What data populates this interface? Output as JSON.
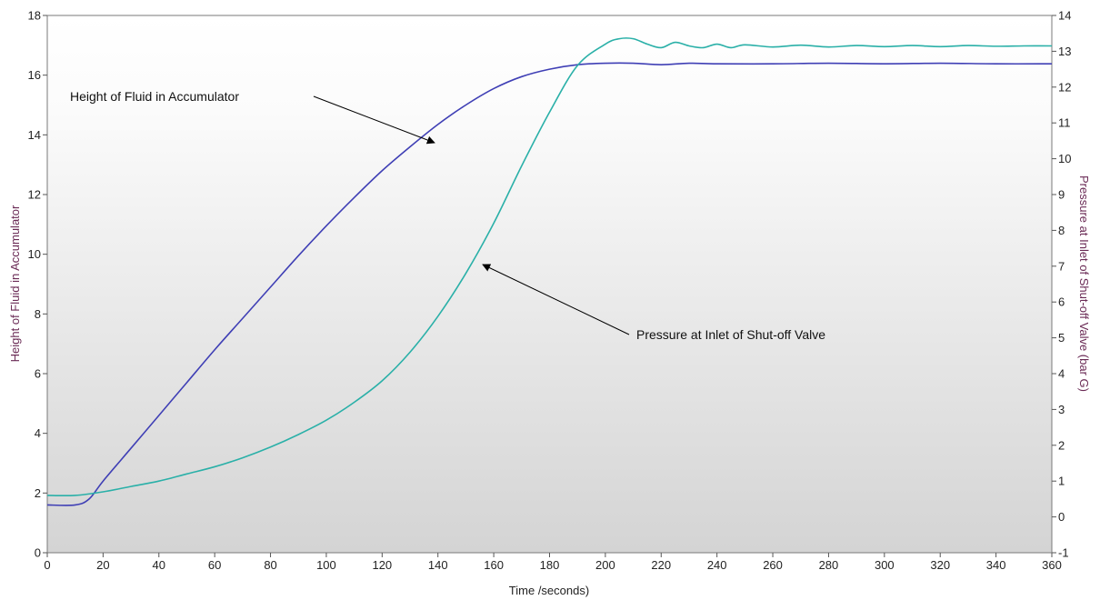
{
  "chart_data": {
    "type": "line",
    "xlabel": "Time /seconds)",
    "ylabel_left": "Height of Fluid in Accumulator",
    "ylabel_right": "Pressure at Inlet of Shut-off Valve (bar G)",
    "xlim": [
      0,
      360
    ],
    "ylim_left": [
      0,
      18
    ],
    "ylim_right": [
      -1,
      14
    ],
    "x_ticks": [
      "0",
      "20",
      "40",
      "60",
      "80",
      "100",
      "120",
      "140",
      "160",
      "180",
      "200",
      "220",
      "240",
      "260",
      "280",
      "300",
      "320",
      "340",
      "360"
    ],
    "y_left_ticks": [
      "0",
      "2",
      "4",
      "6",
      "8",
      "10",
      "12",
      "14",
      "16",
      "18"
    ],
    "y_right_ticks": [
      "-1",
      "0",
      "1",
      "2",
      "3",
      "4",
      "5",
      "6",
      "7",
      "8",
      "9",
      "10",
      "11",
      "12",
      "13",
      "14"
    ],
    "grid": false,
    "series": [
      {
        "name": "Height of Fluid in Accumulator",
        "axis": "left",
        "color": "#3f3fb5",
        "points": [
          [
            0,
            1.6
          ],
          [
            10,
            1.6
          ],
          [
            15,
            1.8
          ],
          [
            20,
            2.4
          ],
          [
            30,
            3.5
          ],
          [
            40,
            4.6
          ],
          [
            50,
            5.7
          ],
          [
            60,
            6.8
          ],
          [
            70,
            7.85
          ],
          [
            80,
            8.9
          ],
          [
            90,
            9.95
          ],
          [
            100,
            10.95
          ],
          [
            110,
            11.9
          ],
          [
            120,
            12.8
          ],
          [
            130,
            13.6
          ],
          [
            140,
            14.35
          ],
          [
            150,
            15.0
          ],
          [
            160,
            15.55
          ],
          [
            170,
            15.95
          ],
          [
            180,
            16.2
          ],
          [
            190,
            16.35
          ],
          [
            200,
            16.4
          ],
          [
            210,
            16.4
          ],
          [
            220,
            16.35
          ],
          [
            230,
            16.4
          ],
          [
            240,
            16.38
          ],
          [
            260,
            16.38
          ],
          [
            280,
            16.4
          ],
          [
            300,
            16.38
          ],
          [
            320,
            16.4
          ],
          [
            340,
            16.38
          ],
          [
            360,
            16.38
          ]
        ]
      },
      {
        "name": "Pressure at Inlet of Shut-off Valve",
        "axis": "right",
        "color": "#2ab0a8",
        "points": [
          [
            0,
            0.6
          ],
          [
            10,
            0.6
          ],
          [
            20,
            0.7
          ],
          [
            30,
            0.85
          ],
          [
            40,
            1.0
          ],
          [
            50,
            1.2
          ],
          [
            60,
            1.4
          ],
          [
            70,
            1.65
          ],
          [
            80,
            1.95
          ],
          [
            90,
            2.3
          ],
          [
            100,
            2.7
          ],
          [
            110,
            3.2
          ],
          [
            120,
            3.8
          ],
          [
            130,
            4.6
          ],
          [
            140,
            5.6
          ],
          [
            150,
            6.8
          ],
          [
            160,
            8.2
          ],
          [
            170,
            9.8
          ],
          [
            180,
            11.3
          ],
          [
            190,
            12.6
          ],
          [
            200,
            13.2
          ],
          [
            205,
            13.35
          ],
          [
            210,
            13.35
          ],
          [
            215,
            13.2
          ],
          [
            220,
            13.1
          ],
          [
            225,
            13.25
          ],
          [
            230,
            13.15
          ],
          [
            235,
            13.1
          ],
          [
            240,
            13.2
          ],
          [
            245,
            13.1
          ],
          [
            250,
            13.18
          ],
          [
            260,
            13.12
          ],
          [
            270,
            13.17
          ],
          [
            280,
            13.12
          ],
          [
            290,
            13.16
          ],
          [
            300,
            13.13
          ],
          [
            310,
            13.16
          ],
          [
            320,
            13.13
          ],
          [
            330,
            13.16
          ],
          [
            340,
            13.14
          ],
          [
            350,
            13.15
          ],
          [
            360,
            13.15
          ]
        ]
      }
    ],
    "annotations": [
      {
        "text": "Height of Fluid in Accumulator",
        "series": 0,
        "arrow_to_x": 140
      },
      {
        "text": "Pressure at Inlet of Shut-off Valve",
        "series": 1,
        "arrow_to_x": 155
      }
    ]
  }
}
